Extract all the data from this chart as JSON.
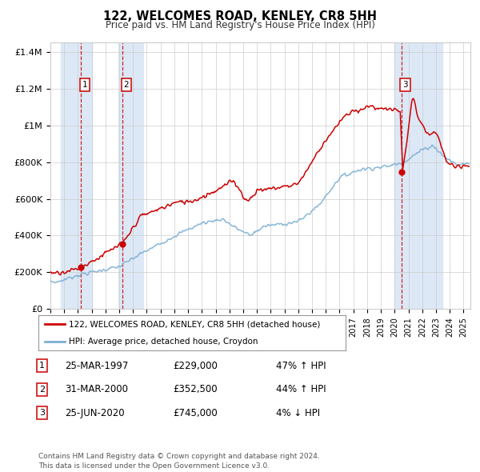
{
  "title": "122, WELCOMES ROAD, KENLEY, CR8 5HH",
  "subtitle": "Price paid vs. HM Land Registry's House Price Index (HPI)",
  "sale_label": "122, WELCOMES ROAD, KENLEY, CR8 5HH (detached house)",
  "hpi_label": "HPI: Average price, detached house, Croydon",
  "footer": "Contains HM Land Registry data © Crown copyright and database right 2024.\nThis data is licensed under the Open Government Licence v3.0.",
  "sale_color": "#cc0000",
  "hpi_color": "#7bafd4",
  "shade_color": "#dce8f5",
  "grid_color": "#cccccc",
  "background_color": "#ffffff",
  "sale_dot_color": "#cc0000",
  "dashed_line_color": "#cc0000",
  "transactions": [
    {
      "num": 1,
      "date": "25-MAR-1997",
      "price": 229000,
      "pct": "47%",
      "dir": "↑",
      "x": 1997.23
    },
    {
      "num": 2,
      "date": "31-MAR-2000",
      "price": 352500,
      "pct": "44%",
      "dir": "↑",
      "x": 2000.25
    },
    {
      "num": 3,
      "date": "25-JUN-2020",
      "price": 745000,
      "pct": "4%",
      "dir": "↓",
      "x": 2020.48
    }
  ],
  "ylim": [
    0,
    1450000
  ],
  "xlim": [
    1995.0,
    2025.5
  ],
  "yticks": [
    0,
    200000,
    400000,
    600000,
    800000,
    1000000,
    1200000,
    1400000
  ],
  "ytick_labels": [
    "£0",
    "£200K",
    "£400K",
    "£600K",
    "£800K",
    "£1M",
    "£1.2M",
    "£1.4M"
  ]
}
